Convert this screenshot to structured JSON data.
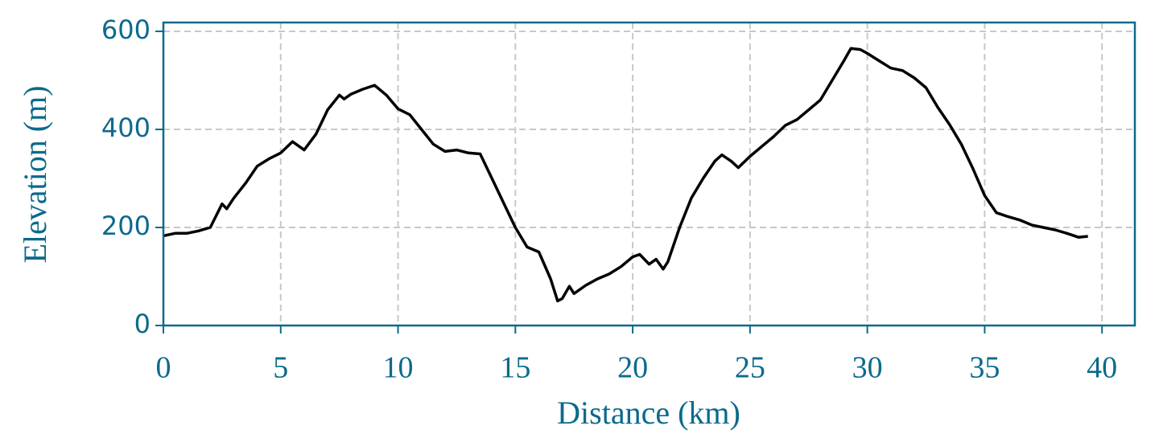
{
  "chart_data": {
    "type": "line",
    "xlabel": "Distance (km)",
    "ylabel": "Elevation (m)",
    "x": [
      0,
      0.5,
      1,
      1.5,
      2,
      2.5,
      2.7,
      3,
      3.5,
      4,
      4.5,
      5,
      5.5,
      6,
      6.5,
      7,
      7.5,
      7.7,
      8,
      8.5,
      9,
      9.5,
      10,
      10.5,
      11,
      11.5,
      12,
      12.5,
      13,
      13.5,
      14,
      14.5,
      15,
      15.5,
      16,
      16.5,
      16.8,
      17,
      17.3,
      17.5,
      18,
      18.5,
      19,
      19.5,
      20,
      20.3,
      20.7,
      21,
      21.3,
      21.5,
      22,
      22.5,
      23,
      23.5,
      23.8,
      24.2,
      24.5,
      25,
      25.5,
      26,
      26.5,
      27,
      27.5,
      28,
      28.5,
      29,
      29.3,
      29.7,
      30,
      30.5,
      31,
      31.5,
      32,
      32.5,
      33,
      33.5,
      34,
      34.5,
      35,
      35.5,
      36,
      36.5,
      37,
      37.5,
      38,
      38.5,
      39,
      39.4
    ],
    "values": [
      183,
      188,
      188,
      193,
      200,
      248,
      238,
      260,
      290,
      325,
      340,
      352,
      375,
      358,
      390,
      440,
      470,
      462,
      472,
      482,
      490,
      470,
      442,
      430,
      400,
      370,
      355,
      358,
      352,
      350,
      300,
      250,
      200,
      160,
      150,
      95,
      50,
      55,
      80,
      65,
      82,
      95,
      105,
      120,
      140,
      145,
      125,
      135,
      115,
      130,
      200,
      260,
      300,
      335,
      348,
      335,
      322,
      345,
      365,
      385,
      408,
      420,
      440,
      460,
      500,
      540,
      565,
      563,
      555,
      540,
      525,
      520,
      505,
      485,
      445,
      410,
      370,
      320,
      265,
      230,
      222,
      215,
      205,
      200,
      195,
      188,
      180,
      182
    ],
    "color": "#000000",
    "axis_color": "#0b6a8c",
    "xlim": [
      0,
      41.4
    ],
    "ylim": [
      0,
      618
    ],
    "xticks": [
      0,
      5,
      10,
      15,
      20,
      25,
      30,
      35,
      40
    ],
    "yticks": [
      0,
      200,
      400,
      600
    ],
    "grid": true
  }
}
